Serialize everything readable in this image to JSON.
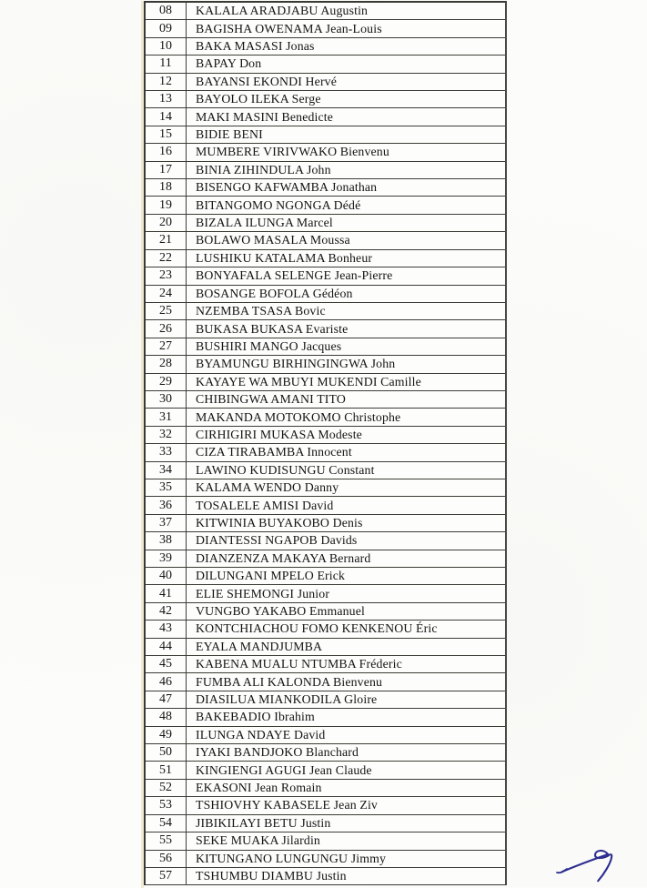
{
  "page": {
    "kind": "scanned participant roster page",
    "paper_color": "#fcfcfa",
    "border_color": "#3c3c36"
  },
  "table": {
    "columns": [
      "number",
      "name"
    ],
    "rows": [
      {
        "number": "08",
        "name": "KALALA ARADJABU Augustin"
      },
      {
        "number": "09",
        "name": "BAGISHA OWENAMA Jean-Louis"
      },
      {
        "number": "10",
        "name": "BAKA MASASI Jonas"
      },
      {
        "number": "11",
        "name": "BAPAY Don"
      },
      {
        "number": "12",
        "name": "BAYANSI EKONDI Hervé"
      },
      {
        "number": "13",
        "name": "BAYOLO ILEKA Serge"
      },
      {
        "number": "14",
        "name": "MAKI MASINI Benedicte"
      },
      {
        "number": "15",
        "name": "BIDIE BENI"
      },
      {
        "number": "16",
        "name": "MUMBERE VIRIVWAKO Bienvenu"
      },
      {
        "number": "17",
        "name": "BINIA ZIHINDULA John"
      },
      {
        "number": "18",
        "name": "BISENGO KAFWAMBA Jonathan"
      },
      {
        "number": "19",
        "name": "BITANGOMO NGONGA Dédé"
      },
      {
        "number": "20",
        "name": "BIZALA ILUNGA Marcel"
      },
      {
        "number": "21",
        "name": "BOLAWO MASALA Moussa"
      },
      {
        "number": "22",
        "name": "LUSHIKU KATALAMA Bonheur"
      },
      {
        "number": "23",
        "name": "BONYAFALA SELENGE Jean-Pierre"
      },
      {
        "number": "24",
        "name": "BOSANGE BOFOLA Gédéon"
      },
      {
        "number": "25",
        "name": "NZEMBA TSASA Bovic"
      },
      {
        "number": "26",
        "name": "BUKASA BUKASA Evariste"
      },
      {
        "number": "27",
        "name": "BUSHIRI MANGO Jacques"
      },
      {
        "number": "28",
        "name": "BYAMUNGU BIRHINGINGWA John"
      },
      {
        "number": "29",
        "name": "KAYAYE WA MBUYI MUKENDI Camille"
      },
      {
        "number": "30",
        "name": "CHIBINGWA AMANI TITO"
      },
      {
        "number": "31",
        "name": "MAKANDA MOTOKOMO Christophe"
      },
      {
        "number": "32",
        "name": "CIRHIGIRI MUKASA Modeste"
      },
      {
        "number": "33",
        "name": "CIZA TIRABAMBA Innocent"
      },
      {
        "number": "34",
        "name": "LAWINO KUDISUNGU Constant"
      },
      {
        "number": "35",
        "name": "KALAMA WENDO Danny"
      },
      {
        "number": "36",
        "name": "TOSALELE AMISI David"
      },
      {
        "number": "37",
        "name": "KITWINIA BUYAKOBO Denis"
      },
      {
        "number": "38",
        "name": "DIANTESSI NGAPOB Davids"
      },
      {
        "number": "39",
        "name": "DIANZENZA MAKAYA Bernard"
      },
      {
        "number": "40",
        "name": "DILUNGANI MPELO Erick"
      },
      {
        "number": "41",
        "name": "ELIE SHEMONGI Junior"
      },
      {
        "number": "42",
        "name": "VUNGBO YAKABO Emmanuel"
      },
      {
        "number": "43",
        "name": "KONTCHIACHOU FOMO KENKENOU Éric"
      },
      {
        "number": "44",
        "name": "EYALA MANDJUMBA"
      },
      {
        "number": "45",
        "name": "KABENA MUALU NTUMBA Fréderic"
      },
      {
        "number": "46",
        "name": "FUMBA ALI KALONDA Bienvenu"
      },
      {
        "number": "47",
        "name": "DIASILUA MIANKODILA Gloire"
      },
      {
        "number": "48",
        "name": "BAKEBADIO Ibrahim"
      },
      {
        "number": "49",
        "name": "ILUNGA NDAYE David"
      },
      {
        "number": "50",
        "name": "IYAKI BANDJOKO Blanchard"
      },
      {
        "number": "51",
        "name": "KINGIENGI AGUGI Jean Claude"
      },
      {
        "number": "52",
        "name": "EKASONI Jean Romain"
      },
      {
        "number": "53",
        "name": "TSHIOVHY KABASELE Jean Ziv"
      },
      {
        "number": "54",
        "name": "JIBIKILAYI BETU Justin"
      },
      {
        "number": "55",
        "name": "SEKE MUAKA Jilardin"
      },
      {
        "number": "56",
        "name": "KITUNGANO LUNGUNGU Jimmy"
      },
      {
        "number": "57",
        "name": "TSHUMBU DIAMBU Justin"
      }
    ]
  },
  "signature": {
    "description": "handwritten blue ink paraph at bottom right",
    "ink_color": "#2c2e8f"
  }
}
